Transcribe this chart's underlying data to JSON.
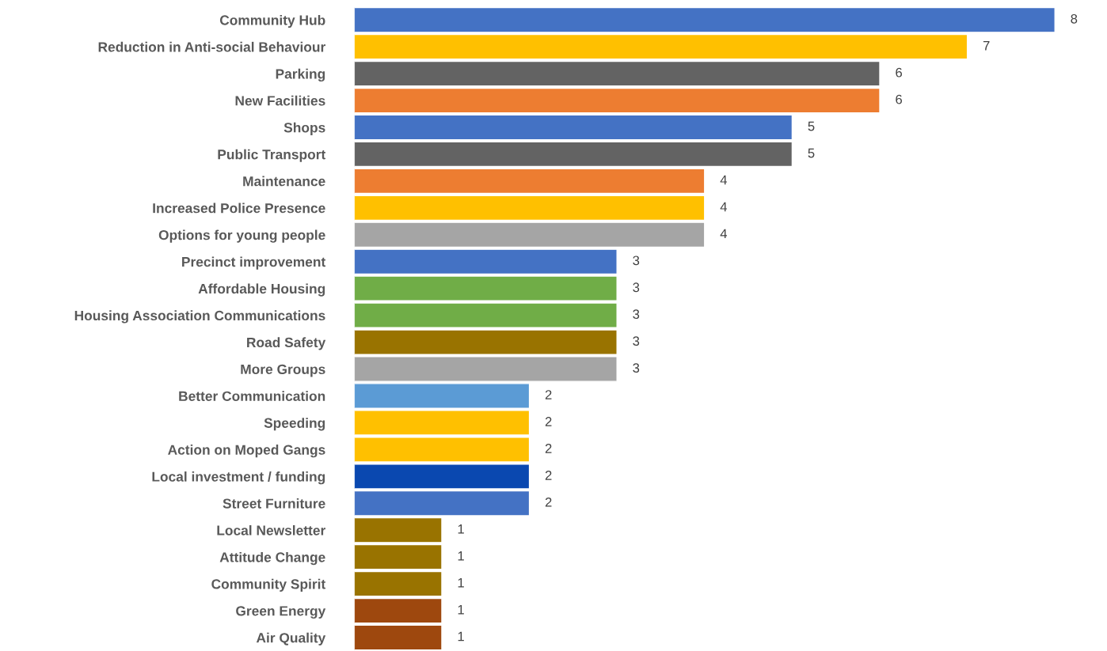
{
  "chart_data": {
    "type": "bar",
    "orientation": "horizontal",
    "data_labels": true,
    "grid": false,
    "legend": false,
    "categories": [
      "Community Hub",
      "Reduction in Anti-social Behaviour",
      "Parking",
      "New Facilities",
      "Shops",
      "Public Transport",
      "Maintenance",
      "Increased Police Presence",
      "Options for young people",
      "Precinct improvement",
      "Affordable Housing",
      "Housing Association Communications",
      "Road Safety",
      "More Groups",
      "Better Communication",
      "Speeding",
      "Action on Moped Gangs",
      "Local investment / funding",
      "Street Furniture",
      "Local Newsletter",
      "Attitude Change",
      "Community Spirit",
      "Green Energy",
      "Air Quality"
    ],
    "values": [
      8,
      7,
      6,
      6,
      5,
      5,
      4,
      4,
      4,
      3,
      3,
      3,
      3,
      3,
      2,
      2,
      2,
      2,
      2,
      1,
      1,
      1,
      1,
      1
    ],
    "colors": [
      "#4472c4",
      "#ffc000",
      "#636363",
      "#ed7d31",
      "#4472c4",
      "#636363",
      "#ed7d31",
      "#ffc000",
      "#a5a5a5",
      "#4472c4",
      "#70ad47",
      "#70ad47",
      "#997300",
      "#a5a5a5",
      "#5b9bd5",
      "#ffc000",
      "#ffc000",
      "#0a48b0",
      "#4472c4",
      "#997300",
      "#997300",
      "#997300",
      "#9e480e",
      "#9e480e"
    ]
  }
}
